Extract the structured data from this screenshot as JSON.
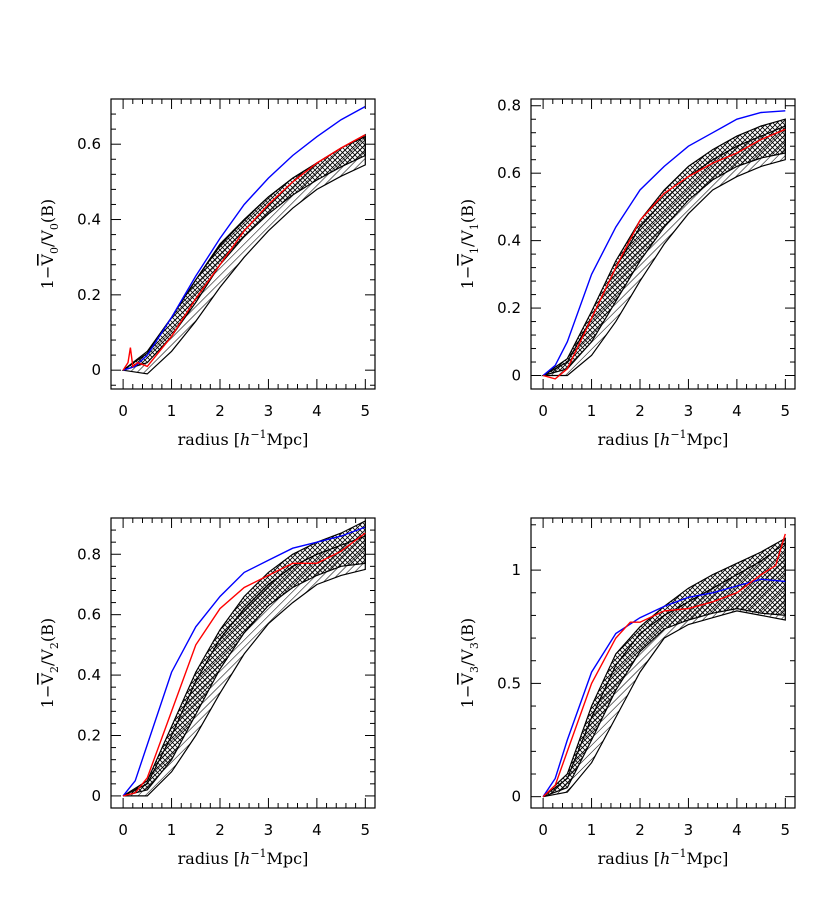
{
  "chart_data": [
    {
      "type": "line",
      "id": "p0",
      "xlabel": {
        "pre": "radius [",
        "italic": "h",
        "sup": "−1",
        "post": "Mpc]"
      },
      "ylabel": {
        "pre": "1−",
        "base": "V",
        "sub": "0",
        "mid": "/V",
        "post": "(B)"
      },
      "xlim": [
        -0.25,
        5.2
      ],
      "ylim": [
        -0.05,
        0.72
      ],
      "xticks": [
        0,
        1,
        2,
        3,
        4,
        5
      ],
      "xtick_labels": [
        "0",
        "1",
        "2",
        "3",
        "4",
        "5"
      ],
      "yticks": [
        0,
        0.2,
        0.4,
        0.6
      ],
      "ytick_labels": [
        "0",
        "0.2",
        "0.4",
        "0.6"
      ],
      "bands": [
        {
          "style": "diagonal",
          "x": [
            0,
            0.5,
            1,
            1.5,
            2,
            2.5,
            3,
            3.5,
            4,
            4.5,
            5
          ],
          "lower": [
            0,
            -0.01,
            0.05,
            0.13,
            0.22,
            0.3,
            0.37,
            0.43,
            0.48,
            0.515,
            0.545
          ],
          "upper": [
            0,
            0.05,
            0.14,
            0.24,
            0.33,
            0.4,
            0.46,
            0.51,
            0.55,
            0.59,
            0.62
          ]
        },
        {
          "style": "cross",
          "x": [
            0,
            0.5,
            1,
            1.5,
            2,
            2.5,
            3,
            3.5,
            4,
            4.5,
            5
          ],
          "lower": [
            0,
            0.02,
            0.09,
            0.18,
            0.28,
            0.355,
            0.415,
            0.465,
            0.505,
            0.54,
            0.57
          ],
          "upper": [
            0,
            0.045,
            0.14,
            0.24,
            0.335,
            0.4,
            0.46,
            0.51,
            0.55,
            0.59,
            0.625
          ]
        }
      ],
      "series": [
        {
          "color": "#0000ff",
          "x": [
            0,
            0.25,
            0.5,
            1,
            1.5,
            2,
            2.5,
            3,
            3.5,
            4,
            4.5,
            5
          ],
          "y": [
            0,
            0.01,
            0.04,
            0.14,
            0.25,
            0.35,
            0.44,
            0.51,
            0.57,
            0.62,
            0.665,
            0.7
          ]
        },
        {
          "color": "#ff0000",
          "x": [
            0,
            0.1,
            0.15,
            0.2,
            0.3,
            0.5,
            1,
            1.5,
            2,
            2.5,
            3,
            3.5,
            4,
            4.5,
            5
          ],
          "y": [
            0,
            0.02,
            0.06,
            0.01,
            0.02,
            0.01,
            0.09,
            0.19,
            0.28,
            0.37,
            0.44,
            0.5,
            0.55,
            0.59,
            0.625
          ]
        }
      ]
    },
    {
      "type": "line",
      "id": "p1",
      "xlabel": {
        "pre": "radius [",
        "italic": "h",
        "sup": "−1",
        "post": "Mpc]"
      },
      "ylabel": {
        "pre": "1−",
        "base": "V",
        "sub": "1",
        "mid": "/V",
        "post": "(B)"
      },
      "xlim": [
        -0.25,
        5.2
      ],
      "ylim": [
        -0.04,
        0.82
      ],
      "xticks": [
        0,
        1,
        2,
        3,
        4,
        5
      ],
      "xtick_labels": [
        "0",
        "1",
        "2",
        "3",
        "4",
        "5"
      ],
      "yticks": [
        0,
        0.2,
        0.4,
        0.6,
        0.8
      ],
      "ytick_labels": [
        "0",
        "0.2",
        "0.4",
        "0.6",
        "0.8"
      ],
      "bands": [
        {
          "style": "diagonal",
          "x": [
            0,
            0.5,
            1,
            1.5,
            2,
            2.5,
            3,
            3.5,
            4,
            4.5,
            5
          ],
          "lower": [
            0,
            0.0,
            0.06,
            0.16,
            0.28,
            0.39,
            0.48,
            0.55,
            0.59,
            0.62,
            0.64
          ],
          "upper": [
            0,
            0.04,
            0.17,
            0.32,
            0.44,
            0.52,
            0.59,
            0.64,
            0.68,
            0.71,
            0.74
          ]
        },
        {
          "style": "cross",
          "x": [
            0,
            0.5,
            1,
            1.5,
            2,
            2.5,
            3,
            3.5,
            4,
            4.5,
            5
          ],
          "lower": [
            0,
            0.02,
            0.1,
            0.22,
            0.34,
            0.44,
            0.52,
            0.58,
            0.62,
            0.645,
            0.66
          ],
          "upper": [
            0,
            0.05,
            0.19,
            0.34,
            0.46,
            0.55,
            0.62,
            0.67,
            0.71,
            0.74,
            0.76
          ]
        }
      ],
      "series": [
        {
          "color": "#0000ff",
          "x": [
            0,
            0.25,
            0.5,
            1,
            1.5,
            2,
            2.5,
            3,
            3.5,
            4,
            4.5,
            5
          ],
          "y": [
            0,
            0.03,
            0.1,
            0.3,
            0.44,
            0.55,
            0.62,
            0.68,
            0.72,
            0.76,
            0.78,
            0.785
          ]
        },
        {
          "color": "#ff0000",
          "x": [
            0,
            0.25,
            0.5,
            1,
            1.5,
            2,
            2.5,
            3,
            3.5,
            4,
            4.5,
            5
          ],
          "y": [
            0,
            -0.01,
            0.02,
            0.17,
            0.32,
            0.46,
            0.54,
            0.59,
            0.63,
            0.66,
            0.7,
            0.73
          ]
        }
      ]
    },
    {
      "type": "line",
      "id": "p2",
      "xlabel": {
        "pre": "radius [",
        "italic": "h",
        "sup": "−1",
        "post": "Mpc]"
      },
      "ylabel": {
        "pre": "1−",
        "base": "V",
        "sub": "2",
        "mid": "/V",
        "post": "(B)"
      },
      "xlim": [
        -0.25,
        5.2
      ],
      "ylim": [
        -0.04,
        0.92
      ],
      "xticks": [
        0,
        1,
        2,
        3,
        4,
        5
      ],
      "xtick_labels": [
        "0",
        "1",
        "2",
        "3",
        "4",
        "5"
      ],
      "yticks": [
        0,
        0.2,
        0.4,
        0.6,
        0.8
      ],
      "ytick_labels": [
        "0",
        "0.2",
        "0.4",
        "0.6",
        "0.8"
      ],
      "bands": [
        {
          "style": "diagonal",
          "x": [
            0,
            0.5,
            1,
            1.5,
            2,
            2.5,
            3,
            3.5,
            4,
            4.5,
            5
          ],
          "lower": [
            0,
            0.0,
            0.08,
            0.2,
            0.34,
            0.47,
            0.57,
            0.64,
            0.7,
            0.73,
            0.75
          ],
          "upper": [
            0,
            0.04,
            0.2,
            0.38,
            0.52,
            0.62,
            0.7,
            0.76,
            0.8,
            0.83,
            0.86
          ]
        },
        {
          "style": "cross",
          "x": [
            0,
            0.5,
            1,
            1.5,
            2,
            2.5,
            3,
            3.5,
            4,
            4.5,
            5
          ],
          "lower": [
            0,
            0.02,
            0.12,
            0.27,
            0.42,
            0.54,
            0.63,
            0.69,
            0.73,
            0.76,
            0.77
          ],
          "upper": [
            0,
            0.05,
            0.23,
            0.41,
            0.55,
            0.66,
            0.74,
            0.8,
            0.84,
            0.87,
            0.91
          ]
        }
      ],
      "series": [
        {
          "color": "#0000ff",
          "x": [
            0,
            0.25,
            0.5,
            1,
            1.5,
            2,
            2.5,
            3,
            3.5,
            4,
            4.5,
            5
          ],
          "y": [
            0,
            0.05,
            0.17,
            0.41,
            0.56,
            0.66,
            0.74,
            0.78,
            0.82,
            0.84,
            0.86,
            0.89
          ]
        },
        {
          "color": "#ff0000",
          "x": [
            0,
            0.25,
            0.5,
            1,
            1.5,
            2,
            2.5,
            3,
            3.5,
            4,
            4.5,
            5
          ],
          "y": [
            0,
            0.01,
            0.06,
            0.28,
            0.5,
            0.62,
            0.69,
            0.73,
            0.77,
            0.77,
            0.81,
            0.87
          ]
        }
      ]
    },
    {
      "type": "line",
      "id": "p3",
      "xlabel": {
        "pre": "radius [",
        "italic": "h",
        "sup": "−1",
        "post": "Mpc]"
      },
      "ylabel": {
        "pre": "1−",
        "base": "V",
        "sub": "3",
        "mid": "/V",
        "post": "(B)"
      },
      "xlim": [
        -0.25,
        5.2
      ],
      "ylim": [
        -0.05,
        1.23
      ],
      "xticks": [
        0,
        1,
        2,
        3,
        4,
        5
      ],
      "xtick_labels": [
        "0",
        "1",
        "2",
        "3",
        "4",
        "5"
      ],
      "yticks": [
        0,
        0.5,
        1
      ],
      "ytick_labels": [
        "0",
        "0.5",
        "1"
      ],
      "bands": [
        {
          "style": "diagonal",
          "x": [
            0,
            0.5,
            1,
            1.5,
            2,
            2.5,
            3,
            3.5,
            4,
            4.5,
            5
          ],
          "lower": [
            0,
            0.02,
            0.15,
            0.35,
            0.55,
            0.7,
            0.76,
            0.79,
            0.82,
            0.8,
            0.78
          ],
          "upper": [
            0,
            0.08,
            0.35,
            0.58,
            0.72,
            0.8,
            0.86,
            0.92,
            0.98,
            1.04,
            1.12
          ]
        },
        {
          "style": "cross",
          "x": [
            0,
            0.5,
            1,
            1.5,
            2,
            2.5,
            3,
            3.5,
            4,
            4.5,
            5
          ],
          "lower": [
            0,
            0.04,
            0.25,
            0.47,
            0.64,
            0.74,
            0.78,
            0.81,
            0.83,
            0.81,
            0.8
          ],
          "upper": [
            0,
            0.1,
            0.4,
            0.63,
            0.75,
            0.84,
            0.92,
            0.98,
            1.03,
            1.08,
            1.14
          ]
        }
      ],
      "series": [
        {
          "color": "#0000ff",
          "x": [
            0,
            0.25,
            0.5,
            1,
            1.5,
            2,
            2.5,
            3,
            3.5,
            4,
            4.5,
            5
          ],
          "y": [
            0,
            0.08,
            0.25,
            0.55,
            0.72,
            0.79,
            0.84,
            0.88,
            0.9,
            0.93,
            0.96,
            0.95
          ]
        },
        {
          "color": "#ff0000",
          "x": [
            0,
            0.25,
            0.5,
            1,
            1.5,
            1.8,
            2,
            2.5,
            3,
            3.5,
            4,
            4.5,
            4.8,
            5
          ],
          "y": [
            0,
            0.05,
            0.2,
            0.5,
            0.7,
            0.77,
            0.77,
            0.82,
            0.83,
            0.86,
            0.9,
            0.98,
            1.02,
            1.16
          ]
        }
      ]
    }
  ]
}
